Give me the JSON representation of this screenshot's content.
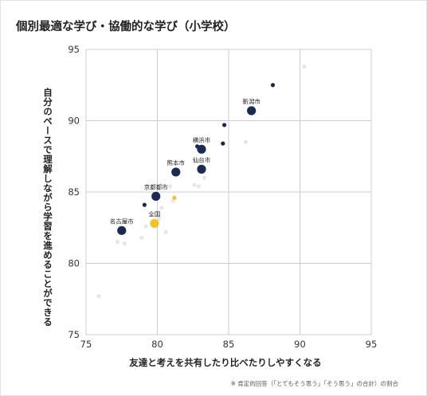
{
  "chart_data": {
    "type": "scatter",
    "title": "個別最適な学び・協働的な学び（小学校）",
    "xlabel": "友達と考えを共有したり比べたりしやすくなる",
    "ylabel": "自分のペースで理解しながら学習を進めることができる",
    "xlim": [
      75,
      95
    ],
    "ylim": [
      75,
      95
    ],
    "xticks": [
      75,
      80,
      85,
      90,
      95
    ],
    "yticks": [
      75,
      80,
      85,
      90,
      95
    ],
    "grid": true,
    "note": "※ 肯定的回答（「とてもそう思う」「そう思う」の合計）の割合",
    "colors": {
      "highlight": "#1b2a50",
      "national": "#f2c12e",
      "other_pref": "#e6e6e6",
      "grid": "#cccccc"
    },
    "series": [
      {
        "points": [
          {
            "x": 77.5,
            "y": 82.3,
            "size": "large",
            "label": "名古屋市"
          },
          {
            "x": 79.9,
            "y": 84.7,
            "size": "large",
            "label": "京都都市"
          },
          {
            "x": 81.3,
            "y": 86.4,
            "size": "large",
            "label": "熊本市"
          },
          {
            "x": 83.1,
            "y": 86.6,
            "size": "large",
            "label": "仙台市"
          },
          {
            "x": 83.1,
            "y": 88.0,
            "size": "large",
            "label": "横浜市"
          },
          {
            "x": 86.6,
            "y": 90.7,
            "size": "large",
            "label": "新潟市"
          },
          {
            "x": 79.1,
            "y": 84.1,
            "size": "small"
          },
          {
            "x": 82.8,
            "y": 88.2,
            "size": "small"
          },
          {
            "x": 84.6,
            "y": 88.4,
            "size": "small"
          },
          {
            "x": 84.7,
            "y": 89.7,
            "size": "small"
          },
          {
            "x": 88.1,
            "y": 92.5,
            "size": "small"
          }
        ]
      },
      {
        "points": [
          {
            "x": 79.8,
            "y": 82.8,
            "size": "large",
            "label": "全国"
          },
          {
            "x": 81.2,
            "y": 84.6,
            "size": "small"
          }
        ]
      },
      {
        "points": [
          {
            "x": 75.9,
            "y": 77.7
          },
          {
            "x": 77.2,
            "y": 81.5
          },
          {
            "x": 77.7,
            "y": 81.4
          },
          {
            "x": 78.9,
            "y": 81.8
          },
          {
            "x": 79.2,
            "y": 82.6
          },
          {
            "x": 80.6,
            "y": 82.2
          },
          {
            "x": 80.1,
            "y": 83.1
          },
          {
            "x": 80.3,
            "y": 83.9
          },
          {
            "x": 81.1,
            "y": 84.4
          },
          {
            "x": 80.9,
            "y": 85.4
          },
          {
            "x": 82.6,
            "y": 85.5
          },
          {
            "x": 82.9,
            "y": 85.4
          },
          {
            "x": 83.3,
            "y": 86.0
          },
          {
            "x": 86.2,
            "y": 88.5
          },
          {
            "x": 90.3,
            "y": 93.8
          }
        ]
      }
    ]
  }
}
